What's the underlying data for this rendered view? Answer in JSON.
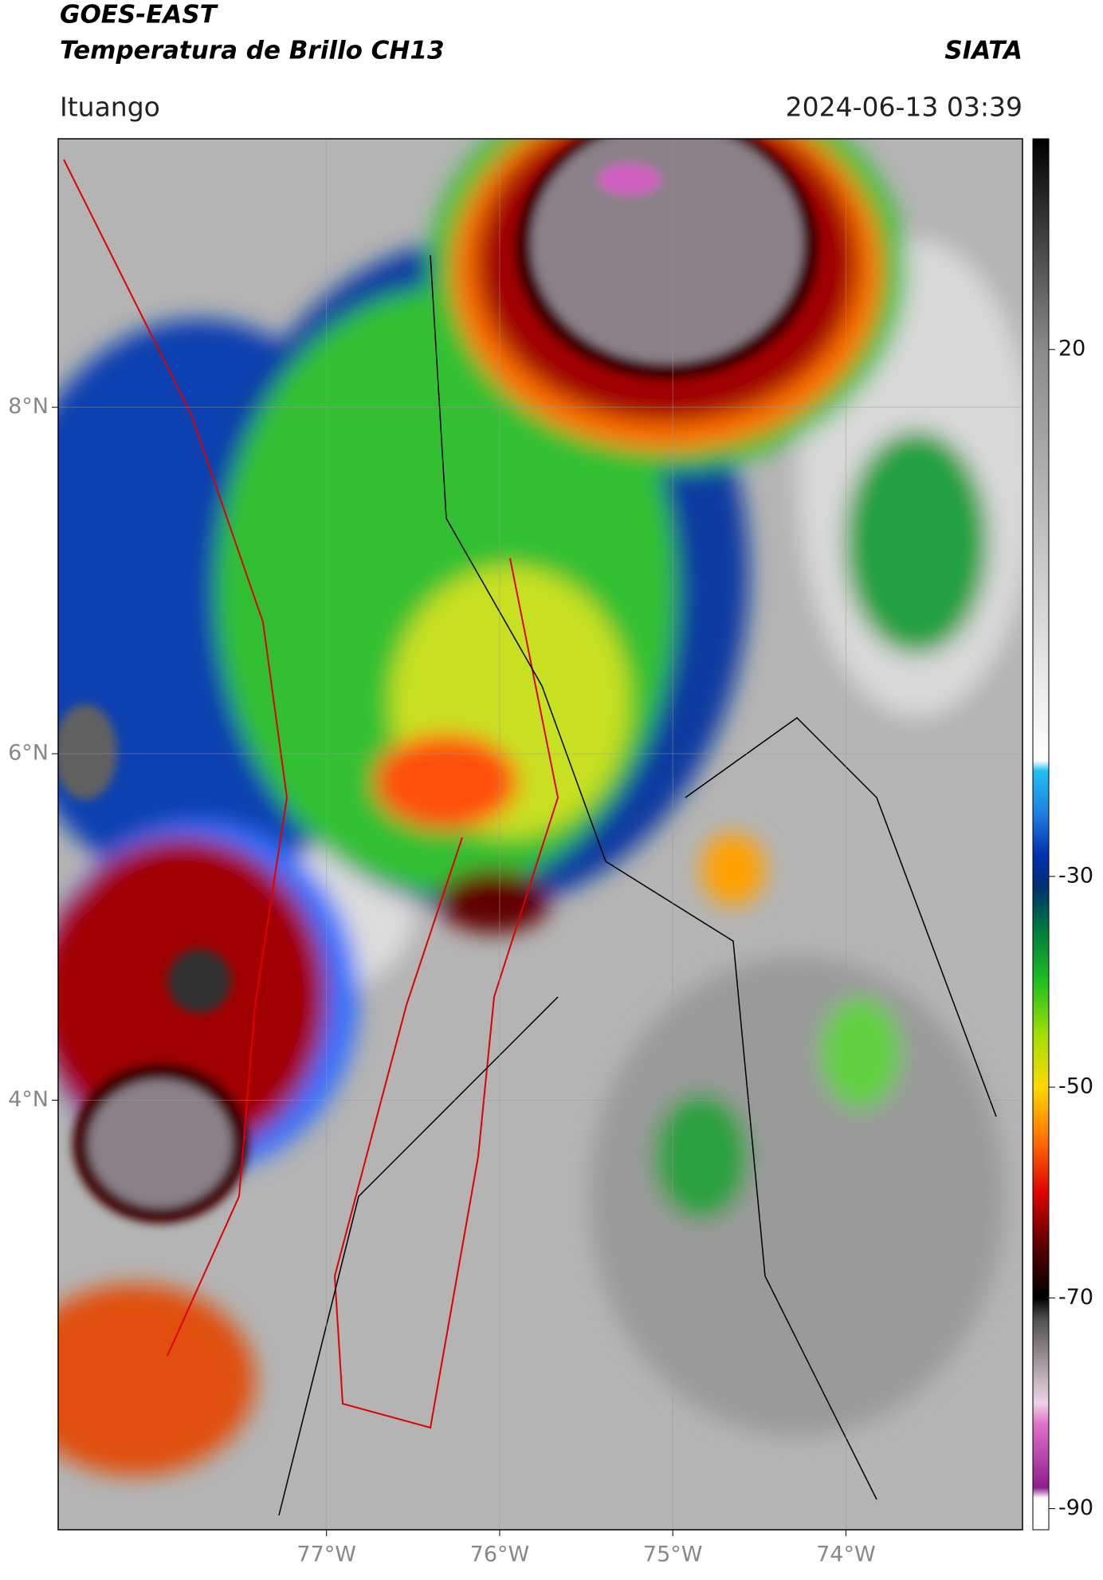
{
  "header": {
    "title": "GOES-EAST",
    "subtitle": "Temperatura de Brillo CH13",
    "brand": "SIATA",
    "location": "Ituango",
    "datetime": "2024-06-13 03:39"
  },
  "map": {
    "lon_range": [
      -78.55,
      -72.98
    ],
    "lat_range": [
      1.52,
      9.55
    ],
    "lat_ticks": [
      {
        "value": 8,
        "label": "8°N"
      },
      {
        "value": 6,
        "label": "6°N"
      },
      {
        "value": 4,
        "label": "4°N"
      }
    ],
    "lon_ticks": [
      {
        "value": -77,
        "label": "77°W"
      },
      {
        "value": -76,
        "label": "76°W"
      },
      {
        "value": -75,
        "label": "75°W"
      },
      {
        "value": -74,
        "label": "74°W"
      }
    ]
  },
  "colorbar": {
    "lim": [
      -92,
      40
    ],
    "ticks": [
      20,
      -30,
      -50,
      -70,
      -90
    ],
    "stops": [
      [
        -92,
        "#ffffff"
      ],
      [
        -89,
        "#ffffff"
      ],
      [
        -88,
        "#8e1e8e"
      ],
      [
        -82,
        "#e070c8"
      ],
      [
        -80,
        "#f0d0e8"
      ],
      [
        -78,
        "#c8b8c0"
      ],
      [
        -72,
        "#505050"
      ],
      [
        -70,
        "#000000"
      ],
      [
        -65,
        "#5a0000"
      ],
      [
        -60,
        "#e00000"
      ],
      [
        -55,
        "#ff7000"
      ],
      [
        -50,
        "#ffd800"
      ],
      [
        -45,
        "#a0e000"
      ],
      [
        -40,
        "#20c020"
      ],
      [
        -35,
        "#007a40"
      ],
      [
        -31,
        "#003070"
      ],
      [
        -28,
        "#0030b0"
      ],
      [
        -24,
        "#2080e0"
      ],
      [
        -20,
        "#20c0f0"
      ],
      [
        -19,
        "#ffffff"
      ],
      [
        0,
        "#c8c8c8"
      ],
      [
        20,
        "#8a8a8a"
      ],
      [
        40,
        "#000000"
      ]
    ]
  }
}
